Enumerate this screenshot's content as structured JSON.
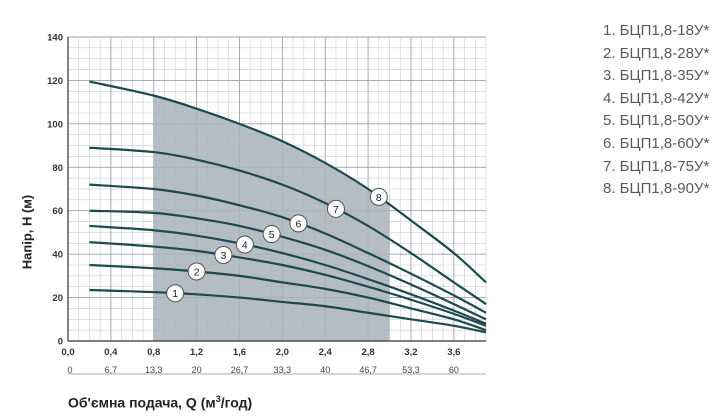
{
  "chart_data": {
    "type": "line",
    "xlabel_main": "Об'ємна подача, Q (м",
    "xlabel_sup": "3",
    "xlabel_end": "/год)",
    "ylabel": "Напір, H (м)",
    "xlim": [
      0,
      3.9
    ],
    "ylim": [
      0,
      140
    ],
    "x_ticks": [
      "0,0",
      "0,4",
      "0,8",
      "1,2",
      "1,6",
      "2,0",
      "2,4",
      "2,8",
      "3,2",
      "3,6"
    ],
    "x_tick_values": [
      0,
      0.4,
      0.8,
      1.2,
      1.6,
      2.0,
      2.4,
      2.8,
      3.2,
      3.6
    ],
    "x2_ticks": [
      "0",
      "6,7",
      "13,3",
      "20",
      "26,7",
      "33,3",
      "40",
      "46,7",
      "53,3",
      "60"
    ],
    "y_ticks": [
      "0",
      "20",
      "40",
      "60",
      "80",
      "100",
      "120",
      "140"
    ],
    "y_tick_values": [
      0,
      20,
      40,
      60,
      80,
      100,
      120,
      140
    ],
    "grid": true,
    "shaded_region": {
      "x_from": 0.8,
      "x_to": 3.0,
      "color": "#a9b3ba"
    },
    "curve_color": "#1d4a4f",
    "legend_position": "right",
    "series": [
      {
        "name": "1. БЦП1,8-18У*",
        "marker": "1",
        "marker_x": 1.0,
        "x": [
          0.2,
          0.8,
          1.2,
          1.6,
          2.0,
          2.4,
          2.8,
          3.2,
          3.6,
          3.9
        ],
        "y": [
          23.5,
          22.5,
          21.5,
          20,
          18,
          16,
          13,
          10,
          7,
          4
        ]
      },
      {
        "name": "2. БЦП1,8-28У*",
        "marker": "2",
        "marker_x": 1.2,
        "x": [
          0.2,
          0.8,
          1.2,
          1.6,
          2.0,
          2.4,
          2.8,
          3.2,
          3.6,
          3.9
        ],
        "y": [
          35,
          33.5,
          32,
          30,
          27,
          24,
          20,
          15,
          10,
          5
        ]
      },
      {
        "name": "3. БЦП1,8-35У*",
        "marker": "3",
        "marker_x": 1.45,
        "x": [
          0.2,
          0.8,
          1.2,
          1.6,
          2.0,
          2.4,
          2.8,
          3.2,
          3.6,
          3.9
        ],
        "y": [
          45.5,
          43.5,
          41.5,
          38.5,
          35,
          30.5,
          25,
          19,
          12.5,
          7
        ]
      },
      {
        "name": "4. БЦП1,8-42У*",
        "marker": "4",
        "marker_x": 1.65,
        "x": [
          0.2,
          0.8,
          1.2,
          1.6,
          2.0,
          2.4,
          2.8,
          3.2,
          3.6,
          3.9
        ],
        "y": [
          53,
          51,
          48.5,
          45,
          40.5,
          35,
          28.5,
          21.5,
          14,
          8
        ]
      },
      {
        "name": "5. БЦП1,8-50У*",
        "marker": "5",
        "marker_x": 1.9,
        "x": [
          0.2,
          0.8,
          1.2,
          1.6,
          2.0,
          2.4,
          2.8,
          3.2,
          3.6,
          3.9
        ],
        "y": [
          60,
          59,
          56.5,
          53,
          48,
          42,
          34.5,
          26,
          17,
          10
        ]
      },
      {
        "name": "6. БЦП1,8-60У*",
        "marker": "6",
        "marker_x": 2.15,
        "x": [
          0.2,
          0.8,
          1.2,
          1.6,
          2.0,
          2.4,
          2.8,
          3.2,
          3.6,
          3.9
        ],
        "y": [
          72,
          70,
          67,
          62.5,
          57,
          49.5,
          40.5,
          31,
          21,
          13
        ]
      },
      {
        "name": "7. БЦП1,8-75У*",
        "marker": "7",
        "marker_x": 2.5,
        "x": [
          0.2,
          0.8,
          1.2,
          1.6,
          2.0,
          2.4,
          2.8,
          3.2,
          3.6,
          3.9
        ],
        "y": [
          89,
          87,
          83.5,
          78.5,
          72,
          63.5,
          53,
          40.5,
          27,
          17
        ]
      },
      {
        "name": "8. БЦП1,8-90У*",
        "marker": "8",
        "marker_x": 2.9,
        "x": [
          0.2,
          0.8,
          1.2,
          1.6,
          2.0,
          2.4,
          2.8,
          3.2,
          3.6,
          3.9
        ],
        "y": [
          119.5,
          113,
          107,
          100,
          92,
          82,
          70,
          55.5,
          40.5,
          27
        ]
      }
    ]
  }
}
